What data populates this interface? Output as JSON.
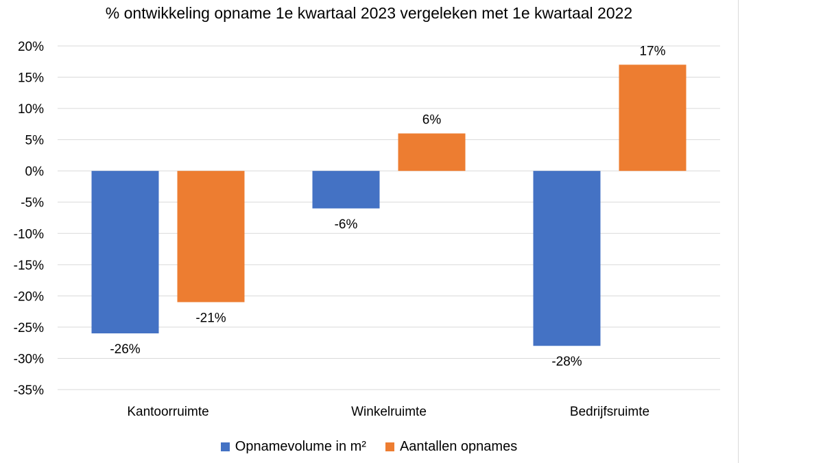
{
  "chart_data": {
    "type": "bar",
    "title": "% ontwikkeling opname 1e kwartaal 2023 vergeleken met 1e kwartaal 2022",
    "categories": [
      "Kantoorruimte",
      "Winkelruimte",
      "Bedrijfsruimte"
    ],
    "series": [
      {
        "name": "Opnamevolume in m²",
        "values": [
          -26,
          -6,
          -28
        ],
        "labels": [
          "-26%",
          "-6%",
          "-28%"
        ],
        "color": "#4472C4"
      },
      {
        "name": "Aantallen opnames",
        "values": [
          -21,
          6,
          17
        ],
        "labels": [
          "-21%",
          "6%",
          "17%"
        ],
        "color": "#ED7D31"
      }
    ],
    "yticks": [
      "20%",
      "15%",
      "10%",
      "5%",
      "0%",
      "-5%",
      "-10%",
      "-15%",
      "-20%",
      "-25%",
      "-30%",
      "-35%"
    ],
    "ylim": [
      -35,
      20
    ],
    "grid": true,
    "legend_position": "bottom"
  }
}
